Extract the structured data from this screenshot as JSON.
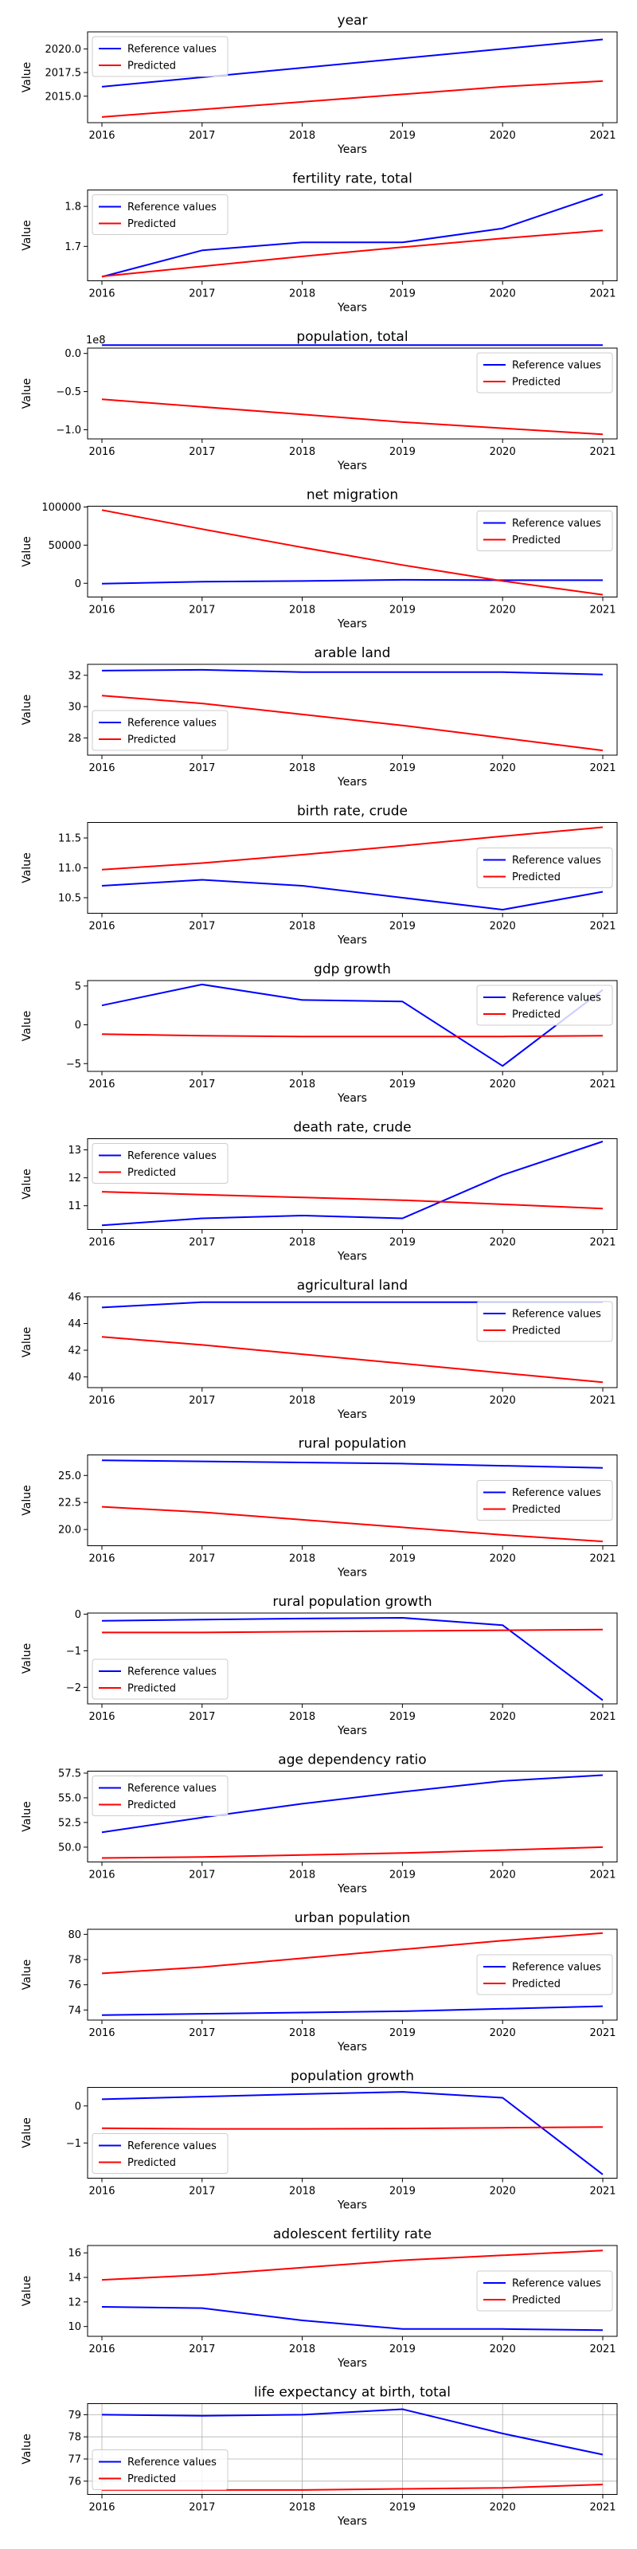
{
  "chart_data": [
    {
      "type": "line",
      "title": "year",
      "xlabel": "Years",
      "ylabel": "Value",
      "categories": [
        "2016",
        "2017",
        "2018",
        "2019",
        "2020",
        "2021"
      ],
      "ylim": [
        2012.2,
        2021.8
      ],
      "yticks": [
        2015.0,
        2017.5,
        2020.0
      ],
      "ytick_labels": [
        "2015.0",
        "2017.5",
        "2020.0"
      ],
      "y_offset_label": "",
      "legend": "upper left",
      "grid": false,
      "series": [
        {
          "name": "Reference values",
          "color": "#0000ff",
          "values": [
            2016,
            2017,
            2018,
            2019,
            2020,
            2021
          ]
        },
        {
          "name": "Predicted",
          "color": "#ff0000",
          "values": [
            2012.8,
            2013.6,
            2014.4,
            2015.2,
            2016.0,
            2016.6
          ]
        }
      ]
    },
    {
      "type": "line",
      "title": "fertility rate, total",
      "xlabel": "Years",
      "ylabel": "Value",
      "categories": [
        "2016",
        "2017",
        "2018",
        "2019",
        "2020",
        "2021"
      ],
      "ylim": [
        1.614,
        1.841
      ],
      "yticks": [
        1.7,
        1.8
      ],
      "ytick_labels": [
        "1.7",
        "1.8"
      ],
      "y_offset_label": "",
      "legend": "upper left",
      "grid": false,
      "series": [
        {
          "name": "Reference values",
          "color": "#0000ff",
          "values": [
            1.624,
            1.69,
            1.71,
            1.71,
            1.745,
            1.83
          ]
        },
        {
          "name": "Predicted",
          "color": "#ff0000",
          "values": [
            1.625,
            1.65,
            1.675,
            1.698,
            1.72,
            1.74
          ]
        }
      ]
    },
    {
      "type": "line",
      "title": "population, total",
      "xlabel": "Years",
      "ylabel": "Value",
      "categories": [
        "2016",
        "2017",
        "2018",
        "2019",
        "2020",
        "2021"
      ],
      "ylim": [
        -1.12,
        0.07
      ],
      "yticks": [
        0.0,
        -0.5,
        -1.0
      ],
      "ytick_labels": [
        "0.0",
        "−0.5",
        "−1.0"
      ],
      "y_offset_label": "1e8",
      "legend": "upper right",
      "grid": false,
      "series": [
        {
          "name": "Reference values",
          "color": "#0000ff",
          "values": [
            0.11,
            0.11,
            0.11,
            0.11,
            0.11,
            0.11
          ]
        },
        {
          "name": "Predicted",
          "color": "#ff0000",
          "values": [
            -0.6,
            -0.7,
            -0.8,
            -0.9,
            -0.98,
            -1.06
          ]
        }
      ]
    },
    {
      "type": "line",
      "title": "net migration",
      "xlabel": "Years",
      "ylabel": "Value",
      "categories": [
        "2016",
        "2017",
        "2018",
        "2019",
        "2020",
        "2021"
      ],
      "ylim": [
        -18000,
        101000
      ],
      "yticks": [
        0,
        50000,
        100000
      ],
      "ytick_labels": [
        "0",
        "50000",
        "100000"
      ],
      "y_offset_label": "",
      "legend": "upper right",
      "grid": false,
      "series": [
        {
          "name": "Reference values",
          "color": "#0000ff",
          "values": [
            -500,
            2000,
            3000,
            4500,
            4000,
            4000
          ]
        },
        {
          "name": "Predicted",
          "color": "#ff0000",
          "values": [
            96000,
            71000,
            47000,
            24000,
            3000,
            -15000
          ]
        }
      ]
    },
    {
      "type": "line",
      "title": "arable land",
      "xlabel": "Years",
      "ylabel": "Value",
      "categories": [
        "2016",
        "2017",
        "2018",
        "2019",
        "2020",
        "2021"
      ],
      "ylim": [
        26.9,
        32.7
      ],
      "yticks": [
        28,
        30,
        32
      ],
      "ytick_labels": [
        "28",
        "30",
        "32"
      ],
      "y_offset_label": "",
      "legend": "lower left",
      "grid": false,
      "series": [
        {
          "name": "Reference values",
          "color": "#0000ff",
          "values": [
            32.3,
            32.35,
            32.2,
            32.2,
            32.2,
            32.05
          ]
        },
        {
          "name": "Predicted",
          "color": "#ff0000",
          "values": [
            30.7,
            30.2,
            29.5,
            28.8,
            28.0,
            27.2
          ]
        }
      ]
    },
    {
      "type": "line",
      "title": "birth rate, crude",
      "xlabel": "Years",
      "ylabel": "Value",
      "categories": [
        "2016",
        "2017",
        "2018",
        "2019",
        "2020",
        "2021"
      ],
      "ylim": [
        10.24,
        11.76
      ],
      "yticks": [
        10.5,
        11.0,
        11.5
      ],
      "ytick_labels": [
        "10.5",
        "11.0",
        "11.5"
      ],
      "y_offset_label": "",
      "legend": "right",
      "grid": false,
      "series": [
        {
          "name": "Reference values",
          "color": "#0000ff",
          "values": [
            10.7,
            10.8,
            10.7,
            10.5,
            10.3,
            10.6
          ]
        },
        {
          "name": "Predicted",
          "color": "#ff0000",
          "values": [
            10.97,
            11.08,
            11.22,
            11.37,
            11.53,
            11.68
          ]
        }
      ]
    },
    {
      "type": "line",
      "title": "gdp growth",
      "xlabel": "Years",
      "ylabel": "Value",
      "categories": [
        "2016",
        "2017",
        "2018",
        "2019",
        "2020",
        "2021"
      ],
      "ylim": [
        -6.0,
        5.7
      ],
      "yticks": [
        5,
        0,
        -5
      ],
      "ytick_labels": [
        "5",
        "0",
        "−5"
      ],
      "y_offset_label": "",
      "legend": "upper right",
      "grid": false,
      "series": [
        {
          "name": "Reference values",
          "color": "#0000ff",
          "values": [
            2.5,
            5.2,
            3.2,
            3.0,
            -5.3,
            4.5
          ]
        },
        {
          "name": "Predicted",
          "color": "#ff0000",
          "values": [
            -1.2,
            -1.4,
            -1.5,
            -1.5,
            -1.5,
            -1.4
          ]
        }
      ]
    },
    {
      "type": "line",
      "title": "death rate, crude",
      "xlabel": "Years",
      "ylabel": "Value",
      "categories": [
        "2016",
        "2017",
        "2018",
        "2019",
        "2020",
        "2021"
      ],
      "ylim": [
        10.15,
        13.4
      ],
      "yticks": [
        11,
        12,
        13
      ],
      "ytick_labels": [
        "11",
        "12",
        "13"
      ],
      "y_offset_label": "",
      "legend": "upper left",
      "grid": false,
      "series": [
        {
          "name": "Reference values",
          "color": "#0000ff",
          "values": [
            10.3,
            10.55,
            10.65,
            10.55,
            12.1,
            13.3
          ]
        },
        {
          "name": "Predicted",
          "color": "#ff0000",
          "values": [
            11.5,
            11.4,
            11.3,
            11.2,
            11.05,
            10.9
          ]
        }
      ]
    },
    {
      "type": "line",
      "title": "agricultural land",
      "xlabel": "Years",
      "ylabel": "Value",
      "categories": [
        "2016",
        "2017",
        "2018",
        "2019",
        "2020",
        "2021"
      ],
      "ylim": [
        39.2,
        46.0
      ],
      "yticks": [
        40,
        42,
        44,
        46
      ],
      "ytick_labels": [
        "40",
        "42",
        "44",
        "46"
      ],
      "y_offset_label": "",
      "legend": "upper right",
      "grid": false,
      "series": [
        {
          "name": "Reference values",
          "color": "#0000ff",
          "values": [
            45.2,
            45.6,
            45.6,
            45.6,
            45.6,
            45.6
          ]
        },
        {
          "name": "Predicted",
          "color": "#ff0000",
          "values": [
            43.0,
            42.4,
            41.7,
            41.0,
            40.3,
            39.6
          ]
        }
      ]
    },
    {
      "type": "line",
      "title": "rural population",
      "xlabel": "Years",
      "ylabel": "Value",
      "categories": [
        "2016",
        "2017",
        "2018",
        "2019",
        "2020",
        "2021"
      ],
      "ylim": [
        18.5,
        26.9
      ],
      "yticks": [
        20.0,
        22.5,
        25.0
      ],
      "ytick_labels": [
        "20.0",
        "22.5",
        "25.0"
      ],
      "y_offset_label": "",
      "legend": "right",
      "grid": false,
      "series": [
        {
          "name": "Reference values",
          "color": "#0000ff",
          "values": [
            26.4,
            26.3,
            26.2,
            26.1,
            25.9,
            25.7
          ]
        },
        {
          "name": "Predicted",
          "color": "#ff0000",
          "values": [
            22.1,
            21.6,
            20.9,
            20.2,
            19.5,
            18.9
          ]
        }
      ]
    },
    {
      "type": "line",
      "title": "rural population growth",
      "xlabel": "Years",
      "ylabel": "Value",
      "categories": [
        "2016",
        "2017",
        "2018",
        "2019",
        "2020",
        "2021"
      ],
      "ylim": [
        -2.45,
        0.03
      ],
      "yticks": [
        0,
        -1,
        -2
      ],
      "ytick_labels": [
        "0",
        "−1",
        "−2"
      ],
      "y_offset_label": "",
      "legend": "lower left",
      "grid": false,
      "series": [
        {
          "name": "Reference values",
          "color": "#0000ff",
          "values": [
            -0.18,
            -0.15,
            -0.12,
            -0.1,
            -0.3,
            -2.35
          ]
        },
        {
          "name": "Predicted",
          "color": "#ff0000",
          "values": [
            -0.5,
            -0.5,
            -0.48,
            -0.46,
            -0.44,
            -0.42
          ]
        }
      ]
    },
    {
      "type": "line",
      "title": "age dependency ratio",
      "xlabel": "Years",
      "ylabel": "Value",
      "categories": [
        "2016",
        "2017",
        "2018",
        "2019",
        "2020",
        "2021"
      ],
      "ylim": [
        48.5,
        57.7
      ],
      "yticks": [
        50.0,
        52.5,
        55.0,
        57.5
      ],
      "ytick_labels": [
        "50.0",
        "52.5",
        "55.0",
        "57.5"
      ],
      "y_offset_label": "",
      "legend": "upper left",
      "grid": false,
      "series": [
        {
          "name": "Reference values",
          "color": "#0000ff",
          "values": [
            51.5,
            53.0,
            54.4,
            55.6,
            56.7,
            57.3
          ]
        },
        {
          "name": "Predicted",
          "color": "#ff0000",
          "values": [
            48.9,
            49.0,
            49.2,
            49.4,
            49.7,
            50.0
          ]
        }
      ]
    },
    {
      "type": "line",
      "title": "urban population",
      "xlabel": "Years",
      "ylabel": "Value",
      "categories": [
        "2016",
        "2017",
        "2018",
        "2019",
        "2020",
        "2021"
      ],
      "ylim": [
        73.2,
        80.4
      ],
      "yticks": [
        74,
        76,
        78,
        80
      ],
      "ytick_labels": [
        "74",
        "76",
        "78",
        "80"
      ],
      "y_offset_label": "",
      "legend": "right",
      "grid": false,
      "series": [
        {
          "name": "Reference values",
          "color": "#0000ff",
          "values": [
            73.6,
            73.7,
            73.8,
            73.9,
            74.1,
            74.3
          ]
        },
        {
          "name": "Predicted",
          "color": "#ff0000",
          "values": [
            76.9,
            77.4,
            78.1,
            78.8,
            79.5,
            80.1
          ]
        }
      ]
    },
    {
      "type": "line",
      "title": "population growth",
      "xlabel": "Years",
      "ylabel": "Value",
      "categories": [
        "2016",
        "2017",
        "2018",
        "2019",
        "2020",
        "2021"
      ],
      "ylim": [
        -1.95,
        0.5
      ],
      "yticks": [
        0,
        -1
      ],
      "ytick_labels": [
        "0",
        "−1"
      ],
      "y_offset_label": "",
      "legend": "lower left",
      "grid": false,
      "series": [
        {
          "name": "Reference values",
          "color": "#0000ff",
          "values": [
            0.18,
            0.25,
            0.32,
            0.38,
            0.22,
            -1.85
          ]
        },
        {
          "name": "Predicted",
          "color": "#ff0000",
          "values": [
            -0.6,
            -0.62,
            -0.62,
            -0.61,
            -0.59,
            -0.57
          ]
        }
      ]
    },
    {
      "type": "line",
      "title": "adolescent fertility rate",
      "xlabel": "Years",
      "ylabel": "Value",
      "categories": [
        "2016",
        "2017",
        "2018",
        "2019",
        "2020",
        "2021"
      ],
      "ylim": [
        9.2,
        16.6
      ],
      "yticks": [
        10,
        12,
        14,
        16
      ],
      "ytick_labels": [
        "10",
        "12",
        "14",
        "16"
      ],
      "y_offset_label": "",
      "legend": "right",
      "grid": false,
      "series": [
        {
          "name": "Reference values",
          "color": "#0000ff",
          "values": [
            11.6,
            11.5,
            10.5,
            9.8,
            9.8,
            9.7
          ]
        },
        {
          "name": "Predicted",
          "color": "#ff0000",
          "values": [
            13.8,
            14.2,
            14.8,
            15.4,
            15.8,
            16.2
          ]
        }
      ]
    },
    {
      "type": "line",
      "title": "life expectancy at birth, total",
      "xlabel": "Years",
      "ylabel": "Value",
      "categories": [
        "2016",
        "2017",
        "2018",
        "2019",
        "2020",
        "2021"
      ],
      "ylim": [
        75.4,
        79.5
      ],
      "yticks": [
        76,
        77,
        78,
        79
      ],
      "ytick_labels": [
        "76",
        "77",
        "78",
        "79"
      ],
      "y_offset_label": "",
      "legend": "lower left",
      "grid": true,
      "series": [
        {
          "name": "Reference values",
          "color": "#0000ff",
          "values": [
            79.0,
            78.95,
            79.0,
            79.25,
            78.15,
            77.2
          ]
        },
        {
          "name": "Predicted",
          "color": "#ff0000",
          "values": [
            75.6,
            75.6,
            75.6,
            75.65,
            75.7,
            75.85
          ]
        }
      ]
    }
  ]
}
